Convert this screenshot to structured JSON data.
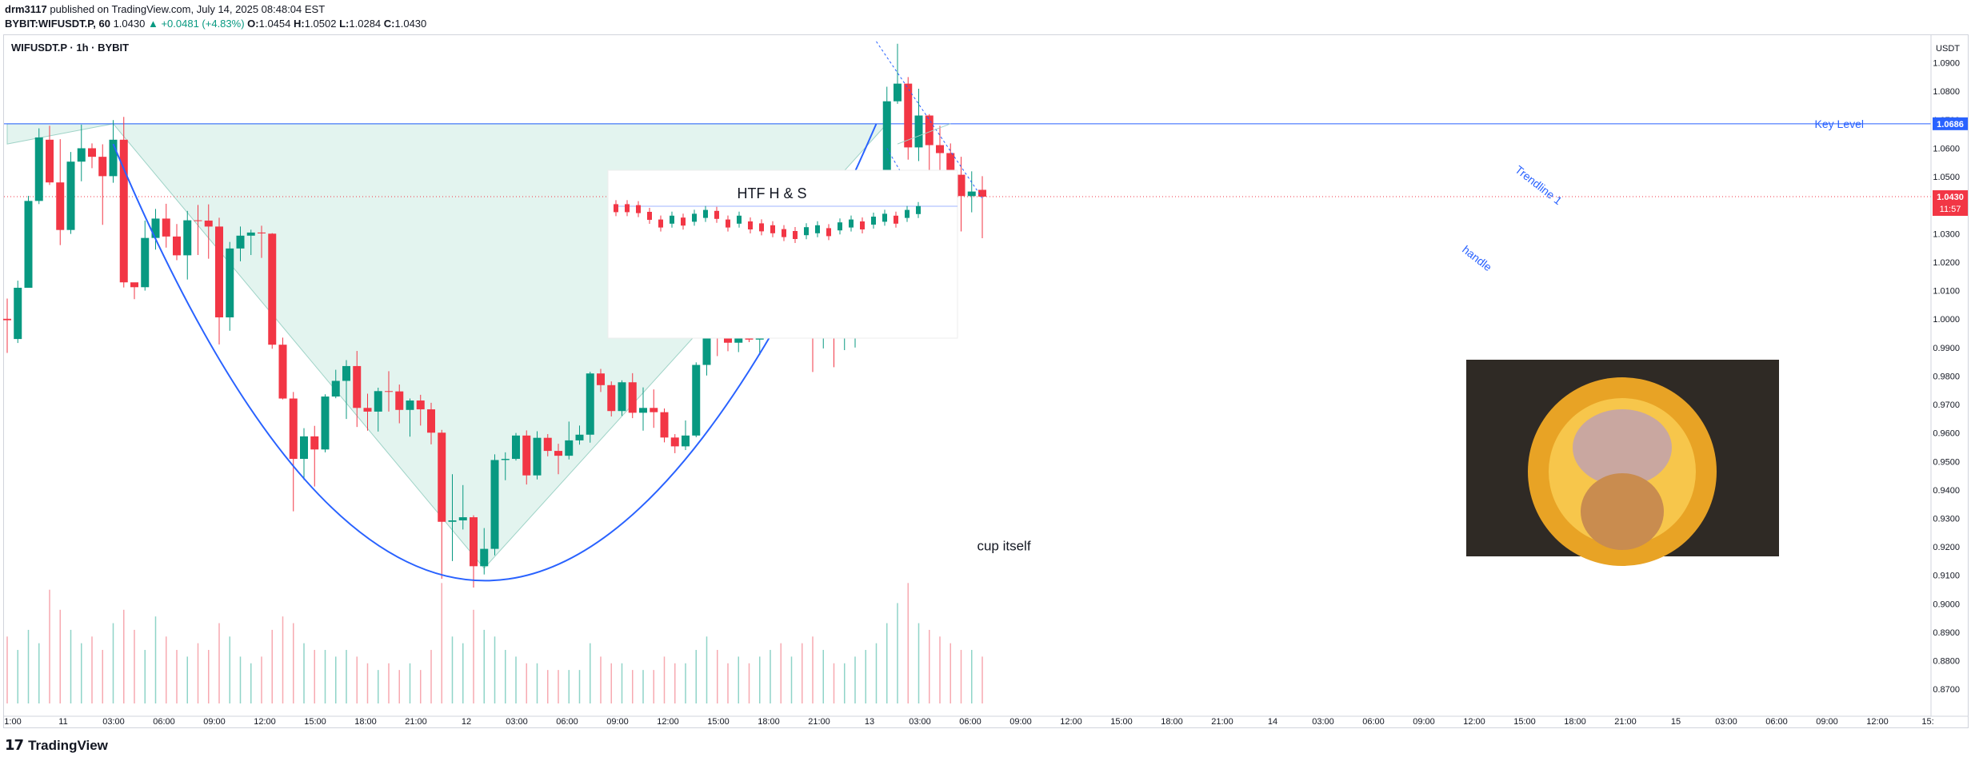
{
  "header": {
    "publisher": "drm3117",
    "published_text": "published on TradingView.com, July 14, 2025 08:48:04 EST",
    "ticker_line": "BYBIT:WIFUSDT.P, 60",
    "last": "1.0430",
    "change": "▲ +0.0481 (+4.83%)",
    "open_label": "O:",
    "open": "1.0454",
    "high_label": "H:",
    "high": "1.0502",
    "low_label": "L:",
    "low": "1.0284",
    "close_label": "C:",
    "close": "1.0430"
  },
  "chart_title": "WIFUSDT.P · 1h · BYBIT",
  "footer": {
    "logo_icon": "tradingview-logo-icon",
    "brand": "TradingView"
  },
  "colors": {
    "up": "#089981",
    "down": "#f23645",
    "key_level": "#2962ff",
    "fill": "#e3f4ef",
    "outline": "#9fd3c7"
  },
  "chart_data": {
    "type": "candlestick",
    "price_axis_label": "USDT",
    "price_range": [
      0.865,
      1.1
    ],
    "y_ticks": [
      "1.0900",
      "1.0800",
      "1.0700",
      "1.0600",
      "1.0500",
      "1.0400",
      "1.0300",
      "1.0200",
      "1.0100",
      "1.0000",
      "0.9900",
      "0.9800",
      "0.9700",
      "0.9600",
      "0.9500",
      "0.9400",
      "0.9300",
      "0.9200",
      "0.9100",
      "0.9000",
      "0.8900",
      "0.8800",
      "0.8700"
    ],
    "x_ticks": [
      "1:00",
      "11",
      "03:00",
      "06:00",
      "09:00",
      "12:00",
      "15:00",
      "18:00",
      "21:00",
      "12",
      "03:00",
      "06:00",
      "09:00",
      "12:00",
      "15:00",
      "18:00",
      "21:00",
      "13",
      "03:00",
      "06:00",
      "09:00",
      "12:00",
      "15:00",
      "18:00",
      "21:00",
      "14",
      "03:00",
      "06:00",
      "09:00",
      "12:00",
      "15:00",
      "18:00",
      "21:00",
      "15",
      "03:00",
      "06:00",
      "09:00",
      "12:00",
      "15:"
    ],
    "candles": [
      [
        1.0001,
        0.9996,
        1.0072,
        0.9881
      ],
      [
        0.993,
        1.011,
        1.0135,
        0.9916
      ],
      [
        1.011,
        1.0415,
        1.0433,
        1.011
      ],
      [
        1.0415,
        1.0638,
        1.067,
        1.0404
      ],
      [
        1.063,
        1.048,
        1.0679,
        1.0471
      ],
      [
        1.048,
        1.0313,
        1.0632,
        1.026
      ],
      [
        1.0313,
        1.0553,
        1.0587,
        1.0299
      ],
      [
        1.0553,
        1.06,
        1.0683,
        1.0484
      ],
      [
        1.06,
        1.057,
        1.0617,
        1.053
      ],
      [
        1.057,
        1.0502,
        1.0614,
        1.0331
      ],
      [
        1.0502,
        1.063,
        1.0699,
        1.0479
      ],
      [
        1.063,
        1.0129,
        1.071,
        1.0111
      ],
      [
        1.0129,
        1.0112,
        1.0125,
        1.007
      ],
      [
        1.0112,
        1.0285,
        1.0346,
        1.01
      ],
      [
        1.0285,
        1.0353,
        1.0387,
        1.0244
      ],
      [
        1.0353,
        1.029,
        1.0405,
        1.0251
      ],
      [
        1.029,
        1.0224,
        1.0334,
        1.0207
      ],
      [
        1.0224,
        1.0347,
        1.038,
        1.0139
      ],
      [
        1.0347,
        1.0346,
        1.0401,
        1.0225
      ],
      [
        1.0346,
        1.0325,
        1.0403,
        1.0212
      ],
      [
        1.0325,
        1.0006,
        1.0356,
        0.9911
      ],
      [
        1.0006,
        1.0248,
        1.0271,
        0.9959
      ],
      [
        1.0248,
        1.0293,
        1.0325,
        1.0203
      ],
      [
        1.0293,
        1.0304,
        1.0314,
        1.0225
      ],
      [
        1.0304,
        1.0301,
        1.0328,
        1.0215
      ],
      [
        1.03,
        0.991,
        1.0302,
        0.9896
      ],
      [
        0.991,
        0.9721,
        0.9935,
        0.9718
      ],
      [
        0.9721,
        0.9509,
        0.9744,
        0.9325
      ],
      [
        0.9509,
        0.9588,
        0.9617,
        0.9435
      ],
      [
        0.9588,
        0.9542,
        0.9625,
        0.9412
      ],
      [
        0.9542,
        0.9728,
        0.9736,
        0.9532
      ],
      [
        0.9728,
        0.9783,
        0.9822,
        0.9722
      ],
      [
        0.9783,
        0.9835,
        0.9856,
        0.9649
      ],
      [
        0.9835,
        0.9688,
        0.9888,
        0.9621
      ],
      [
        0.9688,
        0.9675,
        0.9738,
        0.9608
      ],
      [
        0.9675,
        0.9747,
        0.9759,
        0.9605
      ],
      [
        0.9747,
        0.9746,
        0.9817,
        0.9675
      ],
      [
        0.9746,
        0.9681,
        0.977,
        0.9634
      ],
      [
        0.9681,
        0.9714,
        0.9721,
        0.9587
      ],
      [
        0.9714,
        0.9683,
        0.9734,
        0.9626
      ],
      [
        0.9683,
        0.9601,
        0.9706,
        0.956
      ],
      [
        0.9601,
        0.9288,
        0.9611,
        0.9088
      ],
      [
        0.9288,
        0.9293,
        0.9455,
        0.915
      ],
      [
        0.9293,
        0.9304,
        0.9417,
        0.9261
      ],
      [
        0.9304,
        0.9132,
        0.9311,
        0.9057
      ],
      [
        0.9132,
        0.9193,
        0.9266,
        0.9103
      ],
      [
        0.9193,
        0.9505,
        0.9525,
        0.917
      ],
      [
        0.9505,
        0.9509,
        0.9532,
        0.9434
      ],
      [
        0.9509,
        0.9591,
        0.96,
        0.9503
      ],
      [
        0.9591,
        0.9451,
        0.9609,
        0.9419
      ],
      [
        0.9451,
        0.9583,
        0.9606,
        0.9437
      ],
      [
        0.9583,
        0.9537,
        0.9596,
        0.9518
      ],
      [
        0.9537,
        0.952,
        0.9562,
        0.9455
      ],
      [
        0.952,
        0.9574,
        0.964,
        0.9507
      ],
      [
        0.9574,
        0.9594,
        0.9626,
        0.9559
      ],
      [
        0.9594,
        0.9809,
        0.9815,
        0.9566
      ],
      [
        0.9809,
        0.9768,
        0.9825,
        0.9744
      ],
      [
        0.9768,
        0.9677,
        0.9781,
        0.9658
      ],
      [
        0.9677,
        0.9778,
        0.9785,
        0.966
      ],
      [
        0.9778,
        0.9671,
        0.981,
        0.9652
      ],
      [
        0.9671,
        0.9688,
        0.976,
        0.9608
      ],
      [
        0.9688,
        0.9673,
        0.9753,
        0.9618
      ],
      [
        0.9673,
        0.9584,
        0.9686,
        0.9567
      ],
      [
        0.9584,
        0.9553,
        0.9596,
        0.9529
      ],
      [
        0.9553,
        0.9591,
        0.9644,
        0.954
      ],
      [
        0.9591,
        0.9839,
        0.9848,
        0.9585
      ],
      [
        0.9839,
        1.0005,
        1.0109,
        0.9802
      ],
      [
        1.0005,
        0.9941,
        1.006,
        0.987
      ],
      [
        0.9941,
        0.9917,
        1.0032,
        0.9887
      ],
      [
        0.9917,
        0.9997,
        1.0108,
        0.9884
      ],
      [
        0.9997,
        0.9928,
        1.0047,
        0.9919
      ],
      [
        0.9928,
        0.999,
        1.008,
        0.9874
      ],
      [
        0.999,
        1.0212,
        1.0351,
        0.9945
      ],
      [
        1.0212,
        1.0145,
        1.0228,
        1.01
      ],
      [
        1.0145,
        1.0174,
        1.0175,
        1.0036
      ],
      [
        1.0174,
        1.0122,
        1.0188,
        1.0124
      ],
      [
        1.0122,
        0.9943,
        1.0147,
        0.9814
      ],
      [
        0.9943,
        0.9999,
        1.0007,
        0.9897
      ],
      [
        0.9999,
        0.9932,
        1.0009,
        0.9831
      ],
      [
        0.9932,
        1.0006,
        1.0043,
        0.9891
      ],
      [
        1.0006,
        1.0068,
        1.0115,
        0.99
      ],
      [
        1.0068,
        1.0209,
        1.0221,
        1.0053
      ],
      [
        1.0209,
        1.0402,
        1.0514,
        1.0149
      ],
      [
        1.0402,
        1.0765,
        1.0816,
        1.0368
      ],
      [
        1.0765,
        1.0827,
        1.0967,
        1.0756
      ],
      [
        1.0827,
        1.0603,
        1.085,
        1.056
      ],
      [
        1.0603,
        1.0715,
        1.0809,
        1.0555
      ],
      [
        1.0715,
        1.0611,
        1.072,
        1.0434
      ],
      [
        1.0611,
        1.0583,
        1.0679,
        1.0468
      ],
      [
        1.0583,
        1.0507,
        1.0617,
        1.0484
      ],
      [
        1.0507,
        1.0432,
        1.057,
        1.0308
      ],
      [
        1.0432,
        1.0448,
        1.0519,
        1.0375
      ],
      [
        1.0454,
        1.043,
        1.0502,
        1.0284
      ]
    ],
    "volume": [
      0.1,
      0.08,
      0.11,
      0.09,
      0.17,
      0.14,
      0.11,
      0.09,
      0.1,
      0.08,
      0.12,
      0.14,
      0.11,
      0.08,
      0.13,
      0.1,
      0.08,
      0.07,
      0.09,
      0.08,
      0.12,
      0.1,
      0.07,
      0.06,
      0.07,
      0.11,
      0.13,
      0.12,
      0.09,
      0.08,
      0.08,
      0.07,
      0.08,
      0.07,
      0.06,
      0.05,
      0.06,
      0.05,
      0.06,
      0.05,
      0.08,
      0.18,
      0.1,
      0.09,
      0.14,
      0.11,
      0.1,
      0.08,
      0.07,
      0.06,
      0.06,
      0.05,
      0.05,
      0.05,
      0.05,
      0.09,
      0.07,
      0.06,
      0.06,
      0.05,
      0.05,
      0.05,
      0.07,
      0.06,
      0.06,
      0.08,
      0.1,
      0.08,
      0.06,
      0.07,
      0.06,
      0.07,
      0.08,
      0.09,
      0.07,
      0.09,
      0.1,
      0.08,
      0.06,
      0.06,
      0.07,
      0.08,
      0.09,
      0.12,
      0.15,
      0.18,
      0.12,
      0.11,
      0.1,
      0.09,
      0.08,
      0.08,
      0.07
    ],
    "key_level": {
      "label": "Key Level",
      "value": 1.0686,
      "price_label": "1.0686"
    },
    "last_price": {
      "price_label": "1.0430",
      "countdown": "11:57"
    },
    "annotations": {
      "cup": "cup itself",
      "trendline": "Trendline 1",
      "handle": "handle",
      "inset_title": "HTF H & S"
    }
  }
}
